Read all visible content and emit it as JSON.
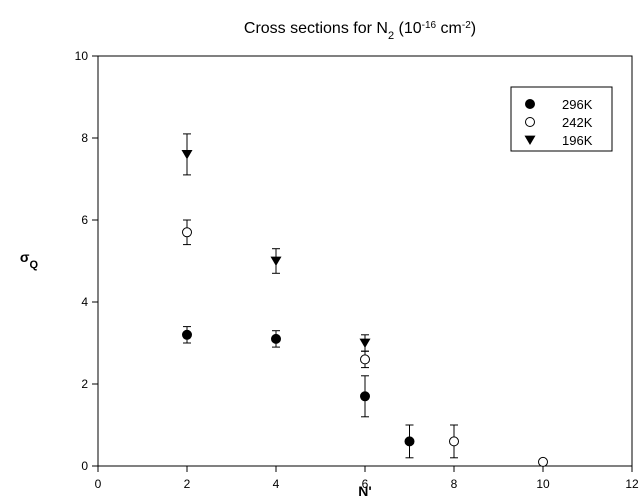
{
  "chart_data": {
    "type": "scatter",
    "title_main": "Cross sections for N",
    "title_sub": "2",
    "title_paren_open": " (10",
    "title_exp": "-16",
    "title_unit": " cm",
    "title_unit_exp": "-2",
    "title_paren_close": ")",
    "xlabel": "N'",
    "ylabel_sym": "σ",
    "ylabel_sub": "Q",
    "xlim": [
      0,
      12
    ],
    "ylim": [
      0,
      10
    ],
    "xticks": [
      "0",
      "2",
      "4",
      "6",
      "8",
      "10",
      "12"
    ],
    "yticks": [
      "0",
      "2",
      "4",
      "6",
      "8",
      "10"
    ],
    "grid": false,
    "legend_position": "top-right",
    "series": [
      {
        "name": "296K",
        "marker": "filled-circle",
        "points": [
          {
            "x": 2,
            "y": 3.2,
            "err": 0.2
          },
          {
            "x": 4,
            "y": 3.1,
            "err": 0.2
          },
          {
            "x": 6,
            "y": 1.7,
            "err": 0.5
          },
          {
            "x": 7,
            "y": 0.6,
            "err": 0.4
          }
        ]
      },
      {
        "name": "242K",
        "marker": "open-circle",
        "points": [
          {
            "x": 2,
            "y": 5.7,
            "err": 0.3
          },
          {
            "x": 6,
            "y": 2.6,
            "err": 0.2
          },
          {
            "x": 8,
            "y": 0.6,
            "err": 0.4
          },
          {
            "x": 10,
            "y": 0.1,
            "err": 0.05
          }
        ]
      },
      {
        "name": "196K",
        "marker": "filled-triangle-down",
        "points": [
          {
            "x": 2,
            "y": 7.6,
            "err": 0.5
          },
          {
            "x": 4,
            "y": 5.0,
            "err": 0.3
          },
          {
            "x": 6,
            "y": 3.0,
            "err": 0.2
          }
        ]
      }
    ]
  }
}
